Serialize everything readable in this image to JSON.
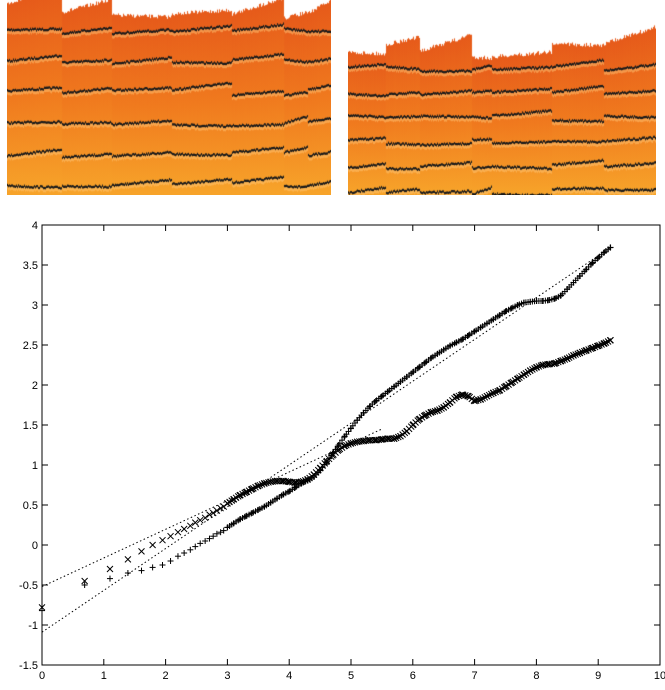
{
  "colors": {
    "flame_top": "#e65a1a",
    "flame_mid": "#f07a1e",
    "flame_bottom": "#f7a42a",
    "stripe": "#1a1a1a",
    "axis": "#000000"
  },
  "chart_data": {
    "type": "scatter",
    "title": "",
    "xlabel": "",
    "ylabel": "",
    "xlim": [
      0,
      10
    ],
    "ylim": [
      -1.5,
      4
    ],
    "x_ticks": [
      "0",
      "1",
      "2",
      "3",
      "4",
      "5",
      "6",
      "7",
      "8",
      "9",
      "10"
    ],
    "y_ticks": [
      "-1.5",
      "-1",
      "-0.5",
      "0",
      "0.5",
      "1",
      "1.5",
      "2",
      "2.5",
      "3",
      "3.5",
      "4"
    ],
    "grid": false,
    "legend": "none",
    "series": [
      {
        "marker": "x",
        "points": [
          [
            0,
            -0.78
          ],
          [
            0.69,
            -0.45
          ],
          [
            1.1,
            -0.3
          ],
          [
            1.39,
            -0.18
          ],
          [
            1.61,
            -0.08
          ],
          [
            1.79,
            0.0
          ],
          [
            1.95,
            0.06
          ],
          [
            2.08,
            0.11
          ],
          [
            2.2,
            0.16
          ],
          [
            2.3,
            0.2
          ],
          [
            2.4,
            0.24
          ],
          [
            2.48,
            0.28
          ],
          [
            2.56,
            0.31
          ],
          [
            2.64,
            0.34
          ],
          [
            2.71,
            0.38
          ],
          [
            2.77,
            0.4
          ],
          [
            2.83,
            0.43
          ],
          [
            2.89,
            0.46
          ],
          [
            2.94,
            0.48
          ],
          [
            3.0,
            0.52
          ],
          [
            3.1,
            0.57
          ],
          [
            3.2,
            0.62
          ],
          [
            3.3,
            0.66
          ],
          [
            3.4,
            0.7
          ],
          [
            3.5,
            0.74
          ],
          [
            3.6,
            0.77
          ],
          [
            3.7,
            0.79
          ],
          [
            3.8,
            0.8
          ],
          [
            3.9,
            0.8
          ],
          [
            4.0,
            0.79
          ],
          [
            4.1,
            0.78
          ],
          [
            4.2,
            0.79
          ],
          [
            4.3,
            0.82
          ],
          [
            4.4,
            0.88
          ],
          [
            4.5,
            0.96
          ],
          [
            4.6,
            1.04
          ],
          [
            4.7,
            1.12
          ],
          [
            4.8,
            1.19
          ],
          [
            4.9,
            1.24
          ],
          [
            5.0,
            1.27
          ],
          [
            5.1,
            1.29
          ],
          [
            5.2,
            1.3
          ],
          [
            5.3,
            1.31
          ],
          [
            5.4,
            1.31
          ],
          [
            5.5,
            1.32
          ],
          [
            5.6,
            1.33
          ],
          [
            5.7,
            1.33
          ],
          [
            5.8,
            1.36
          ],
          [
            5.9,
            1.42
          ],
          [
            6.0,
            1.5
          ],
          [
            6.1,
            1.57
          ],
          [
            6.2,
            1.62
          ],
          [
            6.3,
            1.66
          ],
          [
            6.4,
            1.68
          ],
          [
            6.5,
            1.72
          ],
          [
            6.6,
            1.78
          ],
          [
            6.7,
            1.85
          ],
          [
            6.8,
            1.88
          ],
          [
            6.9,
            1.86
          ],
          [
            7.0,
            1.8
          ],
          [
            7.1,
            1.82
          ],
          [
            7.2,
            1.86
          ],
          [
            7.3,
            1.9
          ],
          [
            7.4,
            1.93
          ],
          [
            7.5,
            1.98
          ],
          [
            7.6,
            2.03
          ],
          [
            7.7,
            2.08
          ],
          [
            7.8,
            2.13
          ],
          [
            7.9,
            2.18
          ],
          [
            8.0,
            2.22
          ],
          [
            8.1,
            2.25
          ],
          [
            8.2,
            2.26
          ],
          [
            8.3,
            2.27
          ],
          [
            8.4,
            2.3
          ],
          [
            8.5,
            2.33
          ],
          [
            8.6,
            2.37
          ],
          [
            8.7,
            2.4
          ],
          [
            8.8,
            2.43
          ],
          [
            8.9,
            2.46
          ],
          [
            9.0,
            2.49
          ],
          [
            9.1,
            2.52
          ],
          [
            9.2,
            2.56
          ]
        ]
      },
      {
        "marker": "+",
        "points": [
          [
            0,
            -0.82
          ],
          [
            0.69,
            -0.5
          ],
          [
            1.1,
            -0.42
          ],
          [
            1.39,
            -0.35
          ],
          [
            1.61,
            -0.32
          ],
          [
            1.79,
            -0.28
          ],
          [
            1.95,
            -0.25
          ],
          [
            2.08,
            -0.2
          ],
          [
            2.2,
            -0.14
          ],
          [
            2.3,
            -0.1
          ],
          [
            2.4,
            -0.06
          ],
          [
            2.48,
            -0.02
          ],
          [
            2.56,
            0.02
          ],
          [
            2.64,
            0.05
          ],
          [
            2.71,
            0.08
          ],
          [
            2.77,
            0.11
          ],
          [
            2.83,
            0.14
          ],
          [
            2.89,
            0.16
          ],
          [
            2.94,
            0.18
          ],
          [
            3.0,
            0.22
          ],
          [
            3.1,
            0.27
          ],
          [
            3.2,
            0.32
          ],
          [
            3.3,
            0.36
          ],
          [
            3.4,
            0.4
          ],
          [
            3.5,
            0.44
          ],
          [
            3.6,
            0.48
          ],
          [
            3.7,
            0.53
          ],
          [
            3.8,
            0.58
          ],
          [
            3.9,
            0.63
          ],
          [
            4.0,
            0.67
          ],
          [
            4.1,
            0.72
          ],
          [
            4.2,
            0.77
          ],
          [
            4.3,
            0.81
          ],
          [
            4.4,
            0.85
          ],
          [
            4.5,
            0.93
          ],
          [
            4.6,
            1.03
          ],
          [
            4.7,
            1.14
          ],
          [
            4.8,
            1.25
          ],
          [
            4.9,
            1.36
          ],
          [
            5.0,
            1.46
          ],
          [
            5.1,
            1.56
          ],
          [
            5.2,
            1.65
          ],
          [
            5.3,
            1.73
          ],
          [
            5.4,
            1.8
          ],
          [
            5.5,
            1.86
          ],
          [
            5.6,
            1.92
          ],
          [
            5.7,
            1.98
          ],
          [
            5.8,
            2.04
          ],
          [
            5.9,
            2.1
          ],
          [
            6.0,
            2.16
          ],
          [
            6.1,
            2.22
          ],
          [
            6.2,
            2.28
          ],
          [
            6.3,
            2.34
          ],
          [
            6.4,
            2.39
          ],
          [
            6.5,
            2.44
          ],
          [
            6.6,
            2.49
          ],
          [
            6.7,
            2.53
          ],
          [
            6.8,
            2.57
          ],
          [
            6.9,
            2.62
          ],
          [
            7.0,
            2.67
          ],
          [
            7.1,
            2.72
          ],
          [
            7.2,
            2.77
          ],
          [
            7.3,
            2.82
          ],
          [
            7.4,
            2.87
          ],
          [
            7.5,
            2.92
          ],
          [
            7.6,
            2.96
          ],
          [
            7.7,
            3.0
          ],
          [
            7.8,
            3.03
          ],
          [
            7.9,
            3.04
          ],
          [
            8.0,
            3.05
          ],
          [
            8.1,
            3.05
          ],
          [
            8.2,
            3.06
          ],
          [
            8.3,
            3.08
          ],
          [
            8.4,
            3.12
          ],
          [
            8.5,
            3.2
          ],
          [
            8.6,
            3.28
          ],
          [
            8.7,
            3.36
          ],
          [
            8.8,
            3.44
          ],
          [
            8.9,
            3.52
          ],
          [
            9.0,
            3.59
          ],
          [
            9.1,
            3.66
          ],
          [
            9.2,
            3.72
          ]
        ]
      }
    ],
    "fit_lines": [
      {
        "style": "dotted",
        "x": [
          0,
          5.5
        ],
        "y": [
          -0.52,
          1.45
        ]
      },
      {
        "style": "dotted",
        "x": [
          0,
          9.2
        ],
        "y": [
          -1.09,
          3.72
        ]
      }
    ]
  }
}
